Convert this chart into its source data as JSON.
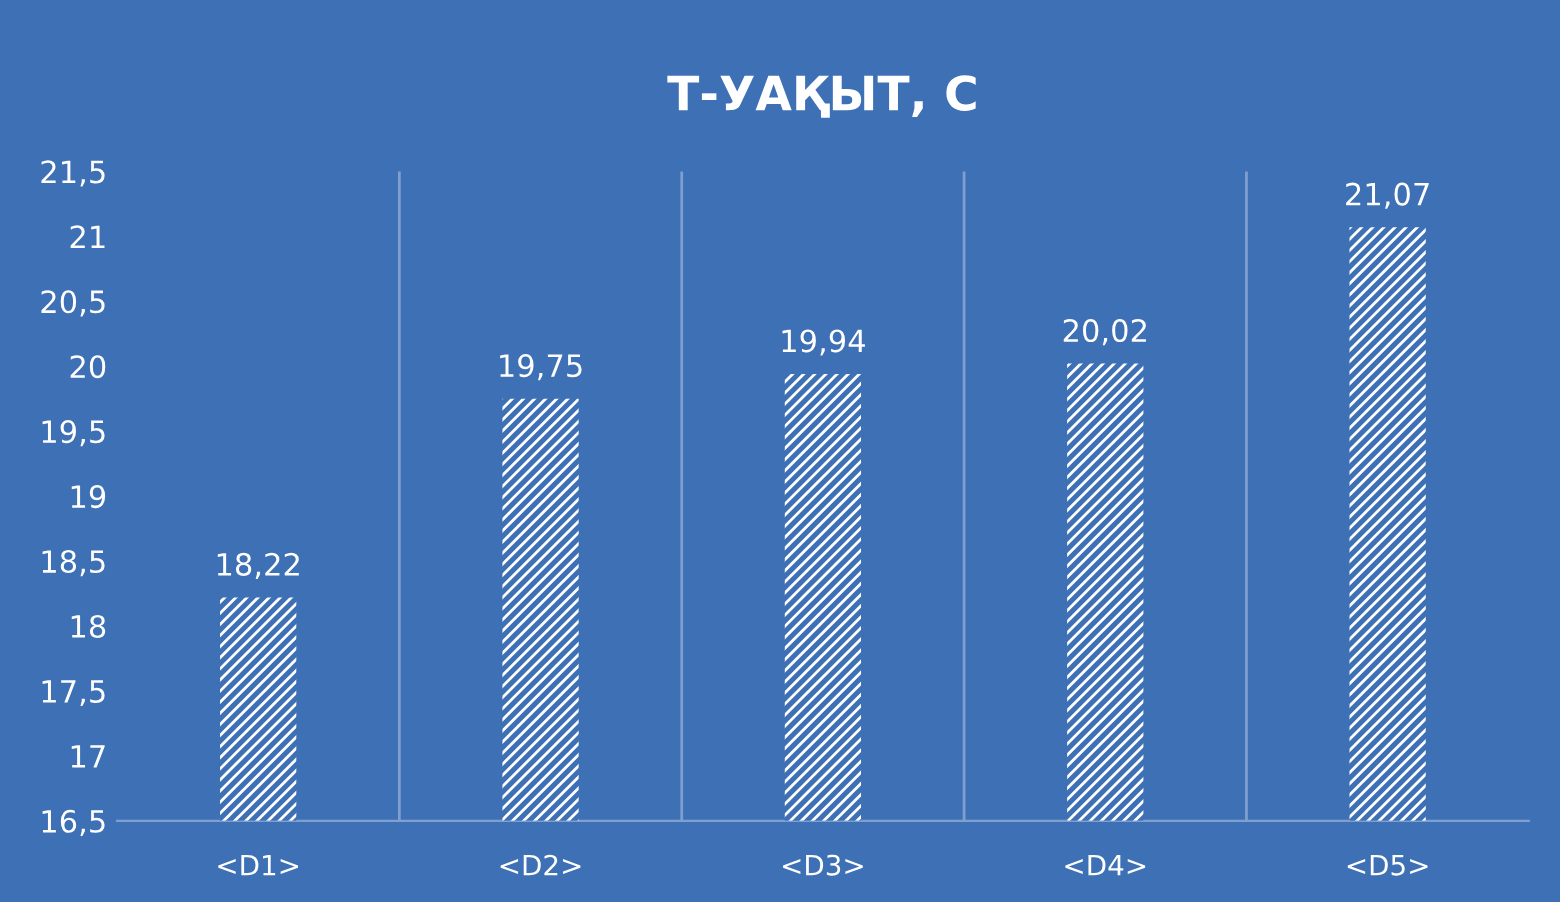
{
  "chart_data": {
    "type": "bar",
    "title": "Т-УАҚЫТ, С",
    "categories": [
      "<D1>",
      "<D2>",
      "<D3>",
      "<D4>",
      "<D5>"
    ],
    "values": [
      18.22,
      19.75,
      19.94,
      20.02,
      21.07
    ],
    "value_labels": [
      "18,22",
      "19,75",
      "19,94",
      "20,02",
      "21,07"
    ],
    "color": "#ffffff",
    "ylim": [
      16.5,
      21.5
    ],
    "yticks": [
      {
        "value": 16.5,
        "label": "16,5"
      },
      17,
      {
        "value": 17.5,
        "label": "17,5"
      },
      18,
      {
        "value": 18.5,
        "label": "18,5"
      },
      19,
      {
        "value": 19.5,
        "label": "19,5"
      },
      20,
      {
        "value": 20.5,
        "label": "20,5"
      },
      21,
      {
        "value": 21.5,
        "label": "21,5"
      }
    ],
    "grid": "x"
  }
}
